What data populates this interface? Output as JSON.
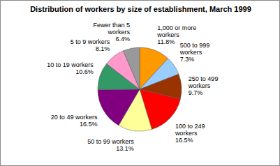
{
  "chart_data": {
    "type": "pie",
    "title": "Distribution of workers by size of establishment, March 1999",
    "categories": [
      "1,000 or more workers",
      "500 to 999 workers",
      "250 to 499 workers",
      "100 to 249 workers",
      "50 to 99 workers",
      "20 to 49 workers",
      "10 to 19 workers",
      "5 to 9 workers",
      "Fewer than 5 workers"
    ],
    "values": [
      11.8,
      7.3,
      9.7,
      16.5,
      13.1,
      16.5,
      10.6,
      8.1,
      6.4
    ],
    "value_labels": [
      "11.8%",
      "7.3%",
      "9.7%",
      "16.5%",
      "13.1%",
      "16.5%",
      "10.6%",
      "8.1%",
      "6.4%"
    ],
    "colors": [
      "#ff9900",
      "#99ccff",
      "#993300",
      "#ff0000",
      "#ffff99",
      "#800080",
      "#339966",
      "#ff99cc",
      "#999999"
    ],
    "data_labels": true
  }
}
